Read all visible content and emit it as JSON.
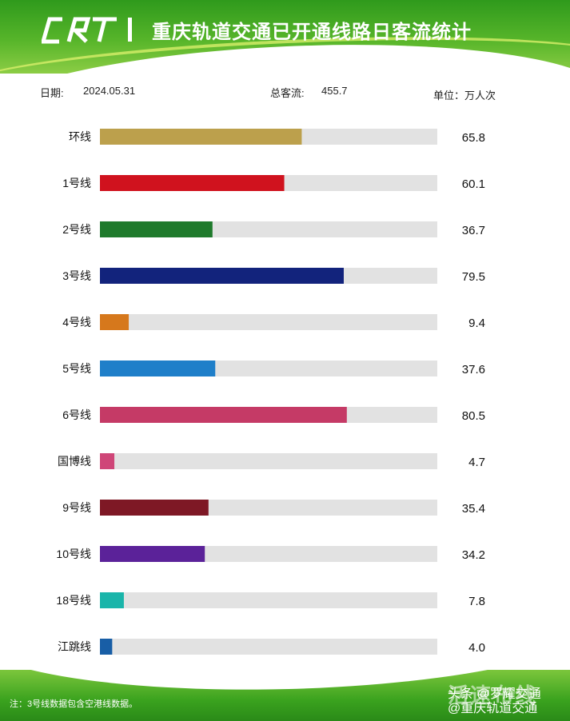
{
  "header": {
    "title": "重庆轨道交通已开通线路日客流统计",
    "logo": "CRT"
  },
  "info": {
    "date_label": "日期:",
    "date_value": "2024.05.31",
    "total_label": "总客流:",
    "total_value": "455.7",
    "unit": "单位：万人次"
  },
  "chart_data": {
    "type": "bar",
    "orientation": "horizontal",
    "title": "重庆轨道交通已开通线路日客流统计",
    "unit": "万人次",
    "xlim": [
      0,
      110
    ],
    "grid": false,
    "legend": "none",
    "categories": [
      "环线",
      "1号线",
      "2号线",
      "3号线",
      "4号线",
      "5号线",
      "6号线",
      "国博线",
      "9号线",
      "10号线",
      "18号线",
      "江跳线"
    ],
    "values": [
      65.8,
      60.1,
      36.7,
      79.5,
      9.4,
      37.6,
      80.5,
      4.7,
      35.4,
      34.2,
      7.8,
      4.0
    ],
    "value_labels": [
      "65.8",
      "60.1",
      "36.7",
      "79.5",
      "9.4",
      "37.6",
      "80.5",
      "4.7",
      "35.4",
      "34.2",
      "7.8",
      "4.0"
    ],
    "colors": [
      "#bca04c",
      "#d0121e",
      "#1f7a2c",
      "#12237c",
      "#d6781c",
      "#1f7fc9",
      "#c53a66",
      "#cf4678",
      "#7e1825",
      "#5b2299",
      "#1ab5aa",
      "#185ea6"
    ],
    "track_color": "#e2e2e2"
  },
  "footer": {
    "note": "注：3号线数据包含空港线数据。",
    "watermark_bg": "活速布线",
    "watermark_line1": "头条 @罗耀交通",
    "watermark_line2": "@重庆轨道交通"
  }
}
